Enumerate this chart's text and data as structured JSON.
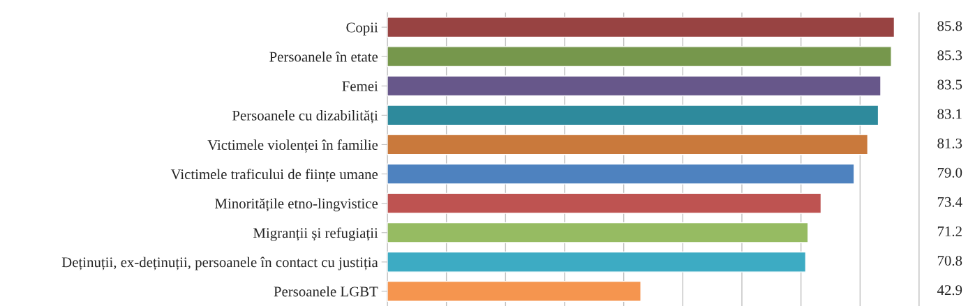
{
  "chart_data": {
    "type": "bar",
    "orientation": "horizontal",
    "categories": [
      "Copii",
      "Persoanele în etate",
      "Femei",
      "Persoanele cu dizabilități",
      "Victimele violenței în familie",
      "Victimele traficului de ființe umane",
      "Minoritățile etno-lingvistice",
      "Migranții și refugiații",
      "Deținuții, ex-deținuții, persoanele în contact cu justiția",
      "Persoanele LGBT"
    ],
    "values": [
      85.8,
      85.3,
      83.5,
      83.1,
      81.3,
      79.0,
      73.4,
      71.2,
      70.8,
      42.9
    ],
    "value_labels": [
      "85.8",
      "85.3",
      "83.5",
      "83.1",
      "81.3",
      "79.0",
      "73.4",
      "71.2",
      "70.8",
      "42.9"
    ],
    "colors": [
      "#984342",
      "#76974c",
      "#67578a",
      "#2e8a9c",
      "#c9793c",
      "#4e82bf",
      "#be5351",
      "#96bb62",
      "#3dabc3",
      "#f5954f"
    ],
    "xlim": [
      0,
      90
    ],
    "xticks": [
      {
        "value": 0,
        "label": null
      },
      {
        "value": 10,
        "label": null
      },
      {
        "value": 20,
        "label": null
      },
      {
        "value": 30,
        "label": null
      },
      {
        "value": 40,
        "label": null
      },
      {
        "value": 50,
        "label": null
      },
      {
        "value": 60,
        "label": null
      },
      {
        "value": 70,
        "label": null
      },
      {
        "value": 80,
        "label": null
      },
      {
        "value": 90,
        "label": null
      }
    ],
    "grid": "x",
    "tick_labels": "y"
  }
}
